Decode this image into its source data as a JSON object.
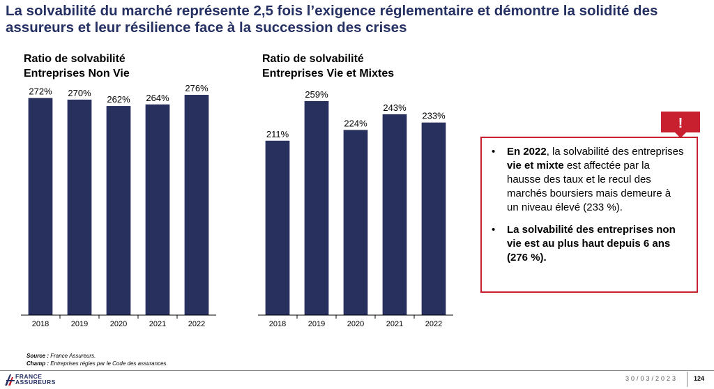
{
  "page": {
    "title": "La solvabilité du marché représente 2,5 fois l’exigence réglementaire et démontre la solidité des assureurs et leur résilience face à la succession des crises"
  },
  "chart_data": [
    {
      "type": "bar",
      "title_line1": "Ratio de solvabilité",
      "title_line2": "Entreprises Non Vie",
      "categories": [
        "2018",
        "2019",
        "2020",
        "2021",
        "2022"
      ],
      "values": [
        272,
        270,
        262,
        264,
        276
      ],
      "labels": [
        "272%",
        "270%",
        "262%",
        "264%",
        "276%"
      ],
      "ylim": [
        0,
        290
      ],
      "color": "#28315e"
    },
    {
      "type": "bar",
      "title_line1": "Ratio de solvabilité",
      "title_line2": "Entreprises Vie et Mixtes",
      "categories": [
        "2018",
        "2019",
        "2020",
        "2021",
        "2022"
      ],
      "values": [
        211,
        259,
        224,
        243,
        233
      ],
      "labels": [
        "211%",
        "259%",
        "224%",
        "243%",
        "233%"
      ],
      "ylim": [
        0,
        280
      ],
      "color": "#28315e"
    }
  ],
  "callout": {
    "bullet": "•",
    "item1_bold": "En 2022",
    "item1_text_a": ", la solvabilité des entreprises ",
    "item1_bold2": "vie et mixte",
    "item1_text_b": " est affectée par la hausse des taux et le recul des marchés boursiers mais demeure à un niveau élevé (233 %).",
    "item2_bold": "La solvabilité des entreprises non vie est au plus haut depuis 6 ans (276 %).",
    "alert_symbol": "!",
    "alert_color": "#c9202f"
  },
  "footer": {
    "source_label": "Source :",
    "source_text": " France Assureurs.",
    "champ_label": "Champ :",
    "champ_text": " Entreprises régies par le Code des assurances.",
    "date": "30/03/2023",
    "page_number": "124",
    "logo_line1": "FRANCE",
    "logo_line2": "ASSUREURS"
  }
}
